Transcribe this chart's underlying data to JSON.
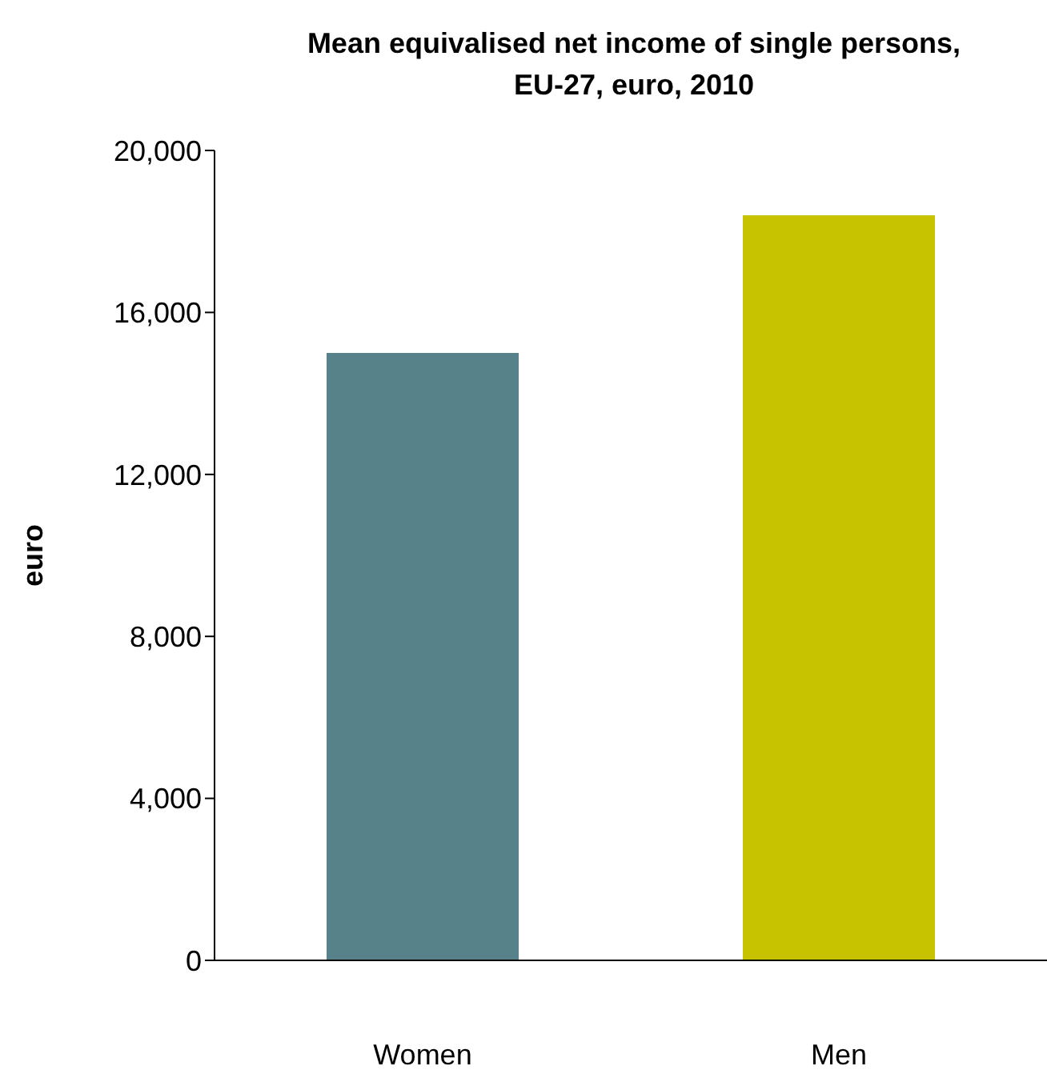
{
  "chart_data": {
    "type": "bar",
    "title": "Mean equivalised net income of single persons,\nEU-27, euro, 2010",
    "ylabel": "euro",
    "categories": [
      "Women",
      "Men"
    ],
    "values": [
      15000,
      18400
    ],
    "colors": [
      "#58828a",
      "#c8c300"
    ],
    "ylim": [
      0,
      20000
    ],
    "yticks": [
      0,
      {
        "value": 4000,
        "label": "4,000"
      },
      {
        "value": 8000,
        "label": "8,000"
      },
      {
        "value": 12000,
        "label": "12,000"
      },
      {
        "value": 16000,
        "label": "16,000"
      },
      {
        "value": 20000,
        "label": "20,000"
      }
    ],
    "grid": false,
    "legend": false
  }
}
